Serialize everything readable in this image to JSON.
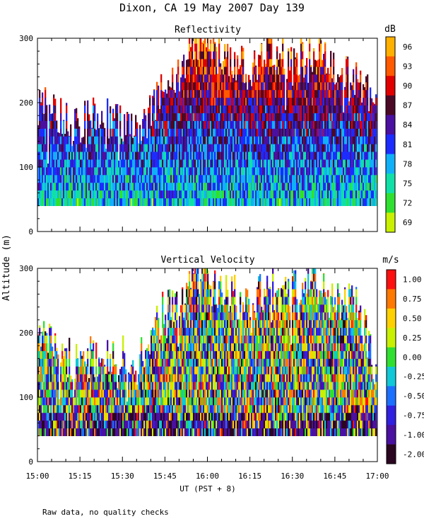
{
  "figure": {
    "title": "Dixon, CA 19 May 2007  Day 139",
    "footnote": "Raw data, no quality checks",
    "shared_ylabel": "Altitude (m)",
    "shared_xlabel": "UT  (PST + 8)"
  },
  "chart_data": [
    {
      "type": "heatmap",
      "title": "Reflectivity",
      "colorbar_unit": "dB",
      "colorbar_ticks": [
        "96",
        "93",
        "90",
        "87",
        "84",
        "81",
        "78",
        "75",
        "72",
        "69"
      ],
      "colorbar_colors": [
        "#ffb000",
        "#ff5a00",
        "#e00000",
        "#4a0a26",
        "#4a10a0",
        "#1c2cff",
        "#10b0f8",
        "#10e0a8",
        "#30e030",
        "#c8f000"
      ],
      "x_ticks": [
        "15:00",
        "15:15",
        "15:30",
        "15:45",
        "16:00",
        "16:15",
        "16:30",
        "16:45",
        "17:00"
      ],
      "y_ticks": [
        "300",
        "200",
        "100",
        "0"
      ],
      "ylim": [
        0,
        300
      ],
      "xlim": [
        "15:00",
        "17:00"
      ],
      "data_bottom_m": 40,
      "top_profile_m": [
        [
          0,
          200
        ],
        [
          6,
          180
        ],
        [
          12,
          165
        ],
        [
          20,
          175
        ],
        [
          30,
          170
        ],
        [
          38,
          165
        ],
        [
          44,
          220
        ],
        [
          50,
          240
        ],
        [
          56,
          300
        ],
        [
          62,
          280
        ],
        [
          68,
          260
        ],
        [
          75,
          250
        ],
        [
          82,
          290
        ],
        [
          90,
          260
        ],
        [
          96,
          300
        ],
        [
          104,
          260
        ],
        [
          110,
          250
        ],
        [
          114,
          230
        ],
        [
          118,
          210
        ],
        [
          120,
          185
        ]
      ]
    },
    {
      "type": "heatmap",
      "title": "Vertical Velocity",
      "colorbar_unit": "m/s",
      "colorbar_ticks": [
        "1.00",
        "0.75",
        "0.50",
        "0.25",
        "0.00",
        "-0.25",
        "-0.50",
        "-0.75",
        "-1.00",
        "-2.00"
      ],
      "colorbar_colors": [
        "#ff1010",
        "#ff7800",
        "#ffd000",
        "#c8f000",
        "#30e030",
        "#10c8d8",
        "#1c70ff",
        "#3020e0",
        "#4a10a0",
        "#2a0620"
      ],
      "x_ticks": [
        "15:00",
        "15:15",
        "15:30",
        "15:45",
        "16:00",
        "16:15",
        "16:30",
        "16:45",
        "17:00"
      ],
      "y_ticks": [
        "300",
        "200",
        "100",
        "0"
      ],
      "ylim": [
        0,
        300
      ],
      "xlim": [
        "15:00",
        "17:00"
      ],
      "data_bottom_m": 40,
      "top_profile_m": [
        [
          0,
          200
        ],
        [
          6,
          170
        ],
        [
          12,
          160
        ],
        [
          20,
          165
        ],
        [
          30,
          165
        ],
        [
          38,
          165
        ],
        [
          44,
          230
        ],
        [
          50,
          250
        ],
        [
          56,
          300
        ],
        [
          62,
          270
        ],
        [
          68,
          260
        ],
        [
          75,
          240
        ],
        [
          82,
          290
        ],
        [
          90,
          260
        ],
        [
          96,
          300
        ],
        [
          104,
          260
        ],
        [
          110,
          250
        ],
        [
          114,
          230
        ],
        [
          118,
          170
        ],
        [
          120,
          140
        ]
      ]
    }
  ]
}
